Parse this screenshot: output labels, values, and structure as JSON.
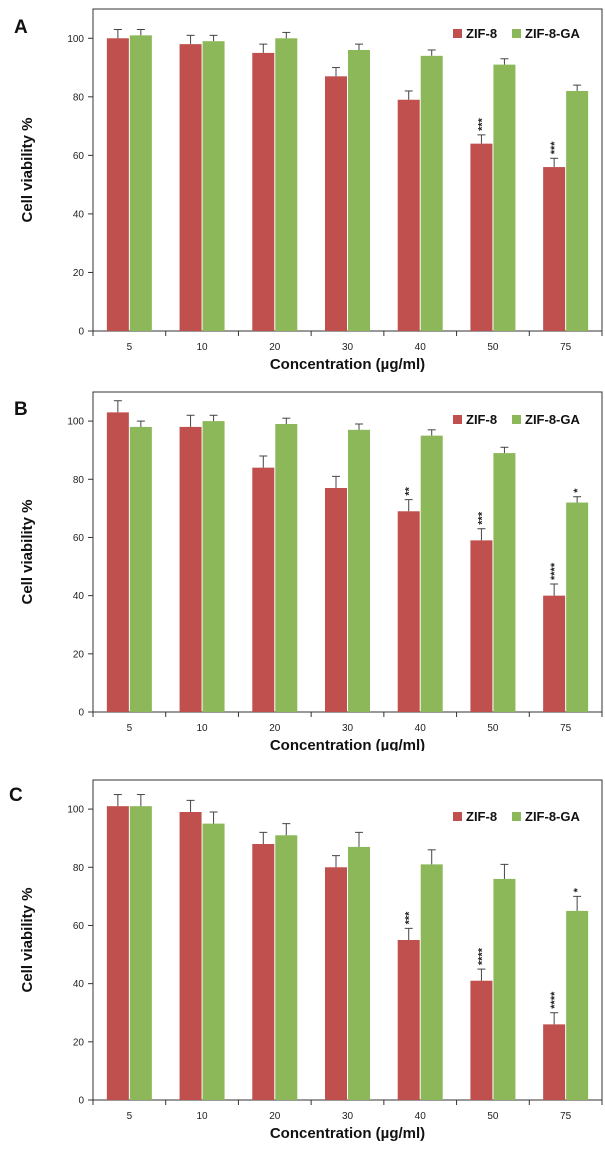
{
  "colors": {
    "ZIF-8": "#c0504d",
    "ZIF-8-GA": "#8db85a",
    "errorbar": "#444444"
  },
  "chart_data": [
    {
      "panel": "A",
      "type": "bar",
      "categories": [
        "5",
        "10",
        "20",
        "30",
        "40",
        "50",
        "75"
      ],
      "xlabel": "Concentration (µg/ml)",
      "ylabel": "Cell viability %",
      "ylim": [
        0,
        110
      ],
      "yticks": [
        0,
        20,
        40,
        60,
        80,
        100
      ],
      "legend": "top-right",
      "grid": false,
      "series": [
        {
          "name": "ZIF-8",
          "values": [
            100,
            98,
            95,
            87,
            79,
            64,
            56
          ],
          "errors": [
            3,
            3,
            3,
            3,
            3,
            3,
            3
          ],
          "significance": [
            "",
            "",
            "",
            "",
            "",
            "***",
            "***"
          ]
        },
        {
          "name": "ZIF-8-GA",
          "values": [
            101,
            99,
            100,
            96,
            94,
            91,
            82
          ],
          "errors": [
            2,
            2,
            2,
            2,
            2,
            2,
            2
          ],
          "significance": [
            "",
            "",
            "",
            "",
            "",
            "",
            ""
          ]
        }
      ]
    },
    {
      "panel": "B",
      "type": "bar",
      "categories": [
        "5",
        "10",
        "20",
        "30",
        "40",
        "50",
        "75"
      ],
      "xlabel": "Concentration (µg/ml)",
      "ylabel": "Cell viability %",
      "ylim": [
        0,
        110
      ],
      "yticks": [
        0,
        20,
        40,
        60,
        80,
        100
      ],
      "legend": "top-right",
      "grid": false,
      "series": [
        {
          "name": "ZIF-8",
          "values": [
            103,
            98,
            84,
            77,
            69,
            59,
            40
          ],
          "errors": [
            4,
            4,
            4,
            4,
            4,
            4,
            4
          ],
          "significance": [
            "",
            "",
            "",
            "",
            "**",
            "***",
            "****"
          ]
        },
        {
          "name": "ZIF-8-GA",
          "values": [
            98,
            100,
            99,
            97,
            95,
            89,
            72
          ],
          "errors": [
            2,
            2,
            2,
            2,
            2,
            2,
            2
          ],
          "significance": [
            "",
            "",
            "",
            "",
            "",
            "",
            "*"
          ]
        }
      ]
    },
    {
      "panel": "C",
      "type": "bar",
      "categories": [
        "5",
        "10",
        "20",
        "30",
        "40",
        "50",
        "75"
      ],
      "xlabel": "Concentration (µg/ml)",
      "ylabel": "Cell viability %",
      "ylim": [
        0,
        110
      ],
      "yticks": [
        0,
        20,
        40,
        60,
        80,
        100
      ],
      "legend": "top-right",
      "grid": false,
      "series": [
        {
          "name": "ZIF-8",
          "values": [
            101,
            99,
            88,
            80,
            55,
            41,
            26
          ],
          "errors": [
            4,
            4,
            4,
            4,
            4,
            4,
            4
          ],
          "significance": [
            "",
            "",
            "",
            "",
            "***",
            "****",
            "****"
          ]
        },
        {
          "name": "ZIF-8-GA",
          "values": [
            101,
            95,
            91,
            87,
            81,
            76,
            65
          ],
          "errors": [
            4,
            4,
            4,
            5,
            5,
            5,
            5
          ],
          "significance": [
            "",
            "",
            "",
            "",
            "",
            "",
            "*"
          ]
        }
      ]
    }
  ]
}
